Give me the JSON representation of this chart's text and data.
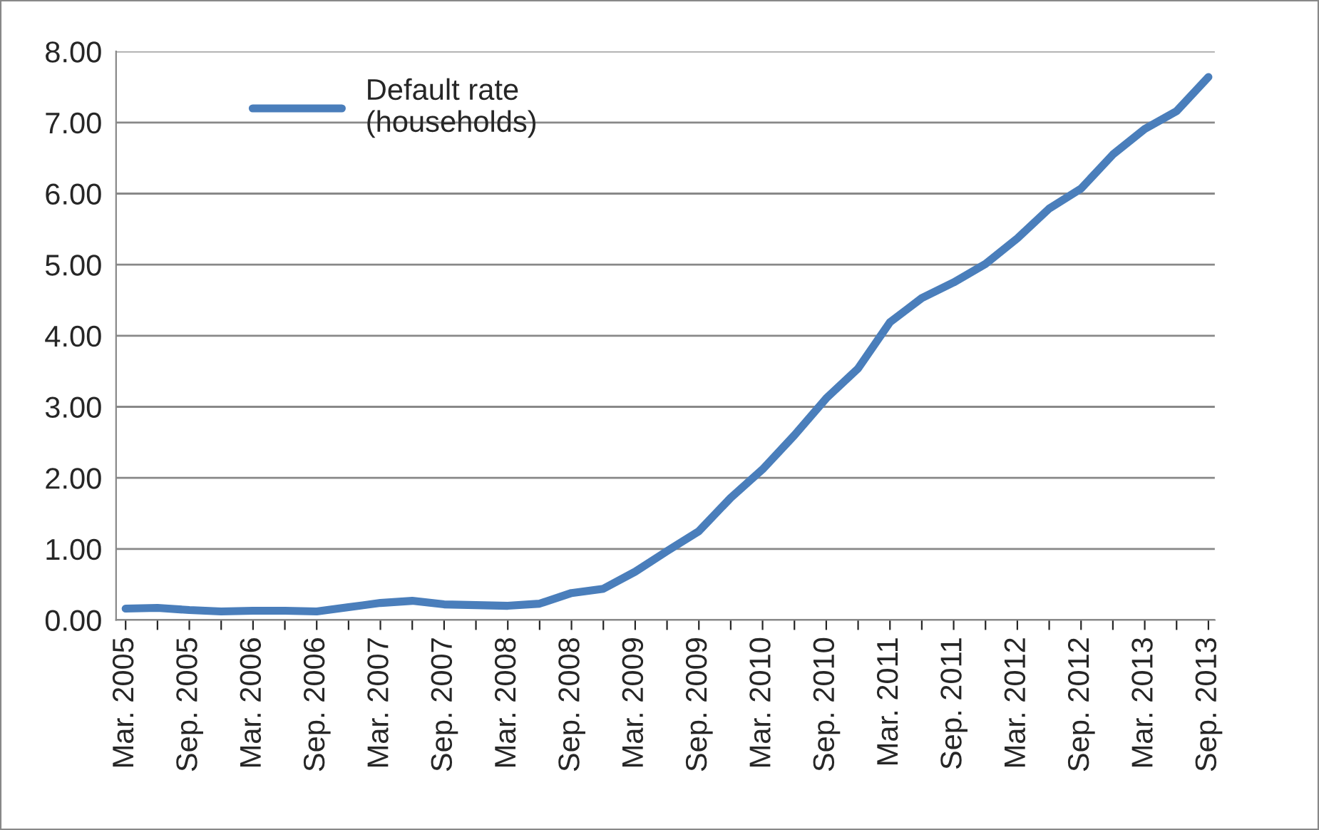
{
  "chart_data": {
    "type": "line",
    "categories": [
      "Mar. 2005",
      null,
      "Sep. 2005",
      null,
      "Mar. 2006",
      null,
      "Sep. 2006",
      null,
      "Mar. 2007",
      null,
      "Sep. 2007",
      null,
      "Mar. 2008",
      null,
      "Sep. 2008",
      null,
      "Mar. 2009",
      null,
      "Sep. 2009",
      null,
      "Mar. 2010",
      null,
      "Sep. 2010",
      null,
      "Mar. 2011",
      null,
      "Sep. 2011",
      null,
      "Mar. 2012",
      null,
      "Sep. 2012",
      null,
      "Mar. 2013",
      null,
      "Sep. 2013"
    ],
    "series": [
      {
        "name": "Default rate\n(households)",
        "color": "#4a7ebb",
        "values": [
          0.16,
          0.17,
          0.14,
          0.12,
          0.13,
          0.13,
          0.12,
          0.18,
          0.24,
          0.27,
          0.22,
          0.21,
          0.2,
          0.23,
          0.38,
          0.44,
          0.68,
          0.97,
          1.25,
          1.72,
          2.12,
          2.6,
          3.12,
          3.54,
          4.19,
          4.53,
          4.75,
          5.01,
          5.37,
          5.79,
          6.07,
          6.55,
          6.91,
          7.16,
          7.64
        ]
      }
    ],
    "ylim": [
      0,
      8
    ],
    "yticks": [
      {
        "value": 0,
        "label": "0.00"
      },
      {
        "value": 1,
        "label": "1.00"
      },
      {
        "value": 2,
        "label": "2.00"
      },
      {
        "value": 3,
        "label": "3.00"
      },
      {
        "value": 4,
        "label": "4.00"
      },
      {
        "value": 5,
        "label": "5.00"
      },
      {
        "value": 6,
        "label": "6.00"
      },
      {
        "value": 7,
        "label": "7.00"
      },
      {
        "value": 8,
        "label": "8.00"
      }
    ],
    "grid": "y",
    "legend": "top left",
    "marker": "none",
    "line_style": "solid"
  }
}
